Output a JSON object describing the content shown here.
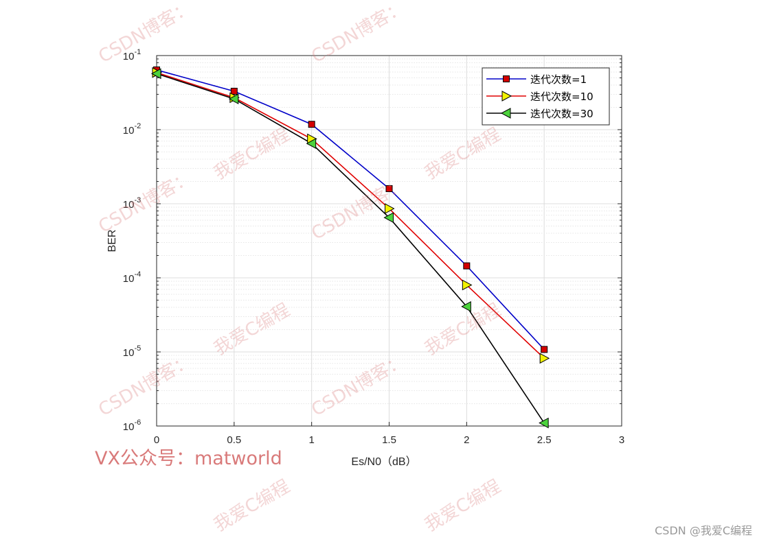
{
  "chart_data": {
    "type": "line",
    "title": "",
    "xlabel": "Es/N0（dB）",
    "ylabel": "BER",
    "xlim": [
      0,
      3
    ],
    "ylim_exp": [
      -6,
      -1
    ],
    "yscale": "log",
    "x_ticks": [
      "0",
      "0.5",
      "1",
      "1.5",
      "2",
      "2.5",
      "3"
    ],
    "y_tick_exponents": [
      "-6",
      "-5",
      "-4",
      "-3",
      "-2",
      "-1"
    ],
    "y_tick_base": "10",
    "grid": true,
    "legend_position": "top-right",
    "x": [
      0,
      0.5,
      1,
      1.5,
      2,
      2.5
    ],
    "series": [
      {
        "name": "迭代次数=1",
        "color": "#0000c8",
        "marker": "square",
        "marker_color": "#d40000",
        "values": [
          0.064,
          0.033,
          0.0118,
          0.0016,
          0.000145,
          1.08e-05
        ]
      },
      {
        "name": "迭代次数=10",
        "color": "#e00000",
        "marker": "triangle-right",
        "marker_color": "#f2f200",
        "values": [
          0.059,
          0.027,
          0.0075,
          0.00086,
          8e-05,
          8.2e-06
        ]
      },
      {
        "name": "迭代次数=30",
        "color": "#000000",
        "marker": "triangle-left",
        "marker_color": "#4cd23c",
        "values": [
          0.057,
          0.026,
          0.0065,
          0.00065,
          4.1e-05,
          1.1e-06
        ]
      }
    ]
  },
  "watermarks": {
    "blog": "CSDN博客：",
    "love": "我爱C编程",
    "vx": "VX公众号：matworld",
    "credit": "CSDN @我爱C编程"
  }
}
